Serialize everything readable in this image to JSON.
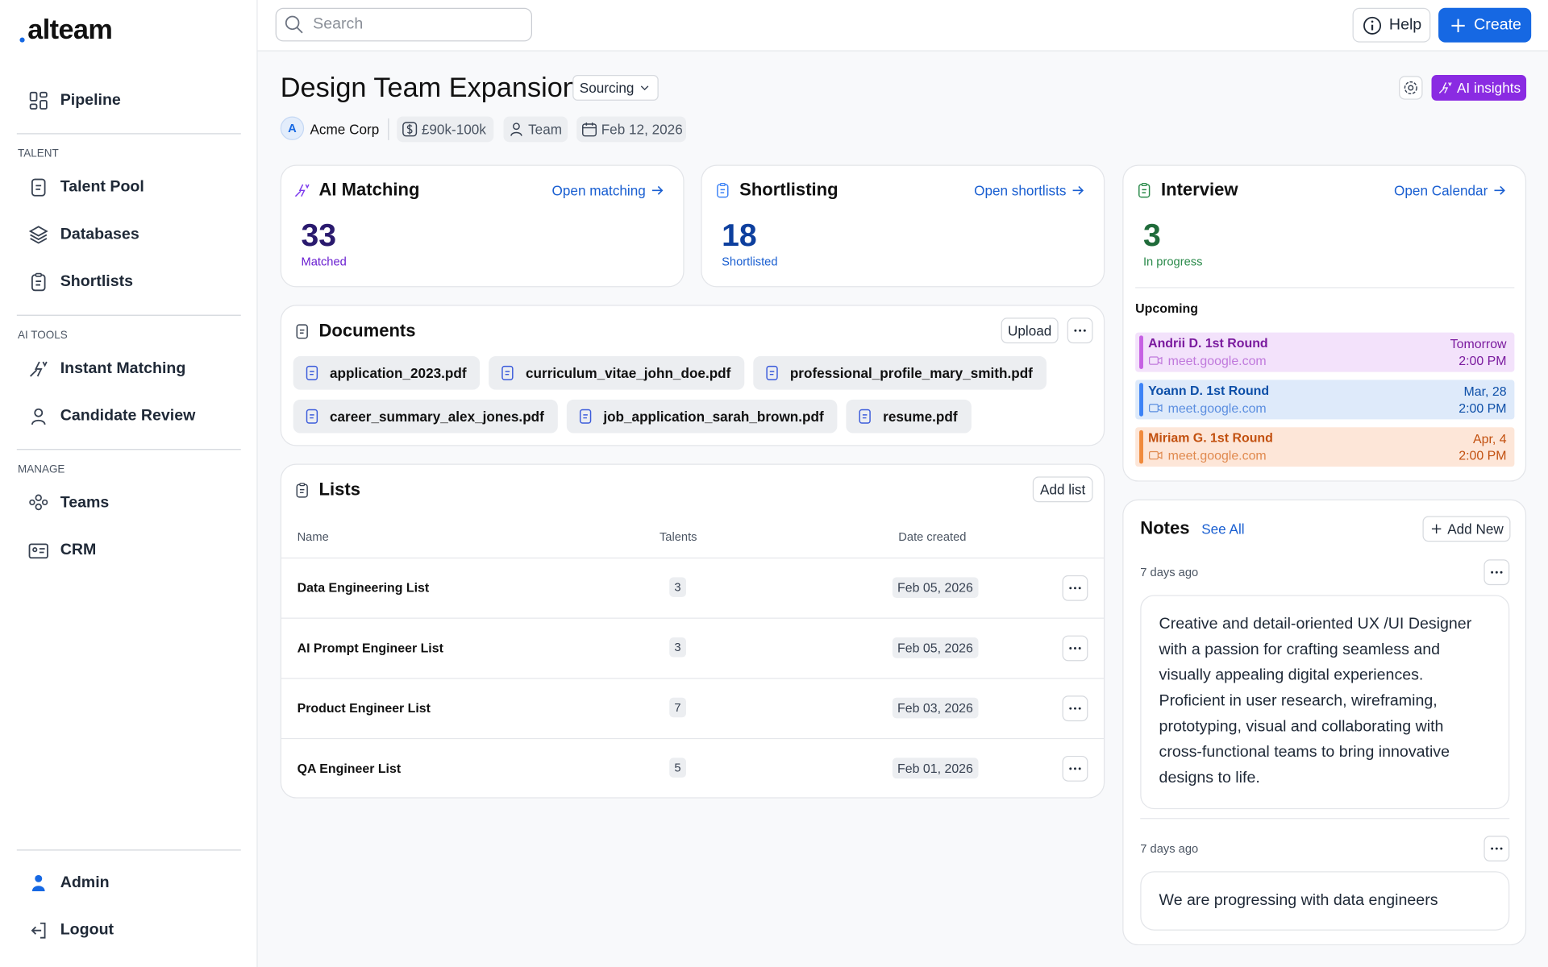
{
  "sidebar": {
    "brand": "alteam",
    "top": [
      "Pipeline"
    ],
    "sections": [
      {
        "heading": "TALENT",
        "items": [
          "Talent Pool",
          "Databases",
          "Shortlists"
        ]
      },
      {
        "heading": "AI TOOLS",
        "items": [
          "Instant Matching",
          "Candidate Review"
        ]
      },
      {
        "heading": "MANAGE",
        "items": [
          "Teams",
          "CRM"
        ]
      }
    ],
    "bottom": [
      "Admin",
      "Logout"
    ]
  },
  "topbar": {
    "search": "Search",
    "help": "Help",
    "create": "Create"
  },
  "header": {
    "title": "Design Team Expansion",
    "status": "Sourcing",
    "ai_insights": "AI insights",
    "company_initial": "A",
    "company": "Acme Corp",
    "salary": "£90k-100k",
    "team": "Team",
    "date": "Feb 12, 2026"
  },
  "stats": [
    {
      "title": "AI Matching",
      "link": "Open matching",
      "value": 33,
      "label": "Matched"
    },
    {
      "title": "Shortlisting",
      "link": "Open shortlists",
      "value": 18,
      "label": "Shortlisted"
    },
    {
      "title": "Interview",
      "link": "Open Calendar",
      "value": 3,
      "label": "In progress"
    }
  ],
  "upcoming": {
    "heading": "Upcoming",
    "events": [
      {
        "name": "Andrii D. 1st Round",
        "link": "meet.google.com",
        "day": "Tomorrow",
        "time": "2:00 PM"
      },
      {
        "name": "Yoann D. 1st Round",
        "link": "meet.google.com",
        "day": "Mar, 28",
        "time": "2:00 PM"
      },
      {
        "name": "Miriam G. 1st Round",
        "link": "meet.google.com",
        "day": "Apr, 4",
        "time": "2:00 PM"
      }
    ]
  },
  "documents": {
    "title": "Documents",
    "upload": "Upload",
    "files": [
      "application_2023.pdf",
      "curriculum_vitae_john_doe.pdf",
      "professional_profile_mary_smith.pdf",
      "career_summary_alex_jones.pdf",
      "job_application_sarah_brown.pdf",
      "resume.pdf"
    ]
  },
  "lists": {
    "title": "Lists",
    "add": "Add list",
    "columns": [
      "Name",
      "Talents",
      "Date created"
    ],
    "rows": [
      [
        "Data Engineering List",
        3,
        "Feb 05, 2026"
      ],
      [
        "AI Prompt Engineer List",
        3,
        "Feb 05, 2026"
      ],
      [
        "Product Engineer List",
        7,
        "Feb 03, 2026"
      ],
      [
        "QA Engineer List",
        5,
        "Feb 01, 2026"
      ]
    ]
  },
  "notes": {
    "title": "Notes",
    "see_all": "See All",
    "add": "Add New",
    "items": [
      {
        "time": "7 days ago",
        "text": "Creative and detail-oriented UX /UI Designer with a passion for crafting seamless and visually appealing digital experiences. Proficient in user research, wireframing, prototyping, visual and collaborating with cross-functional teams to bring innovative designs to life."
      },
      {
        "time": "7 days ago",
        "text": "We are progressing with data engineers"
      }
    ]
  }
}
